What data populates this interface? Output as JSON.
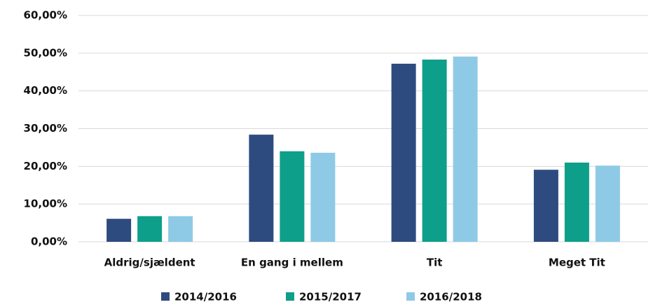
{
  "chart_data": {
    "type": "bar",
    "categories": [
      "Aldrig/sjældent",
      "En gang i mellem",
      "Tit",
      "Meget Tit"
    ],
    "series": [
      {
        "name": "2014/2016",
        "color": "#2e4b7f",
        "values": [
          6.1,
          28.4,
          47.2,
          19.1
        ]
      },
      {
        "name": "2015/2017",
        "color": "#0e9f8a",
        "values": [
          6.8,
          24.0,
          48.3,
          21.0
        ]
      },
      {
        "name": "2016/2018",
        "color": "#8ecae6",
        "values": [
          6.8,
          23.6,
          49.1,
          20.2
        ]
      }
    ],
    "ylim": [
      0,
      60
    ],
    "yticks": [
      {
        "value": 0,
        "label": "0,00%"
      },
      {
        "value": 10,
        "label": "10,00%"
      },
      {
        "value": 20,
        "label": "20,00%"
      },
      {
        "value": 30,
        "label": "30,00%"
      },
      {
        "value": 40,
        "label": "40,00%"
      },
      {
        "value": 50,
        "label": "50,00%"
      },
      {
        "value": 60,
        "label": "60,00%"
      }
    ],
    "grid": true,
    "legend": "bottom"
  }
}
